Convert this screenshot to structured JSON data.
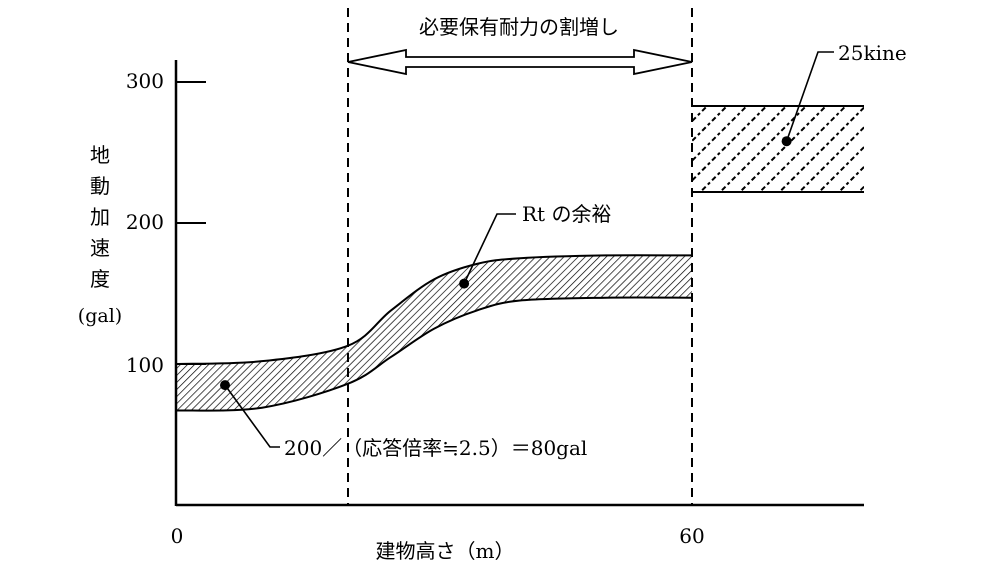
{
  "chart_data": {
    "type": "area",
    "title": "",
    "xlabel": "建物高さ（m）",
    "ylabel_chars": [
      "地",
      "動",
      "加",
      "速",
      "度",
      "(gal)"
    ],
    "xlim": [
      0,
      80
    ],
    "ylim": [
      0,
      330
    ],
    "x_ticks": [
      {
        "value": 0,
        "label": "0"
      },
      {
        "value": 60,
        "label": "60"
      }
    ],
    "y_ticks": [
      {
        "value": 100,
        "label": "100"
      },
      {
        "value": 200,
        "label": "200"
      },
      {
        "value": 300,
        "label": "300"
      }
    ],
    "grid": false,
    "dashed_verticals": [
      20,
      60
    ],
    "range_arrow": {
      "from": 20,
      "to": 60,
      "label": "必要保有耐力の割増し"
    },
    "rt_band": {
      "upper": [
        [
          0,
          100
        ],
        [
          10,
          102
        ],
        [
          20,
          113
        ],
        [
          25,
          138
        ],
        [
          30,
          160
        ],
        [
          35,
          171
        ],
        [
          40,
          175
        ],
        [
          50,
          177
        ],
        [
          60,
          177
        ]
      ],
      "lower": [
        [
          0,
          67
        ],
        [
          10,
          69
        ],
        [
          20,
          86
        ],
        [
          25,
          105
        ],
        [
          30,
          125
        ],
        [
          35,
          138
        ],
        [
          40,
          145
        ],
        [
          50,
          147
        ],
        [
          60,
          147
        ]
      ],
      "fill": "diagonal-hatch-fine"
    },
    "kine_box": {
      "x": [
        60,
        80
      ],
      "y": [
        222,
        283
      ],
      "fill": "diagonal-hatch-dotted"
    },
    "annotations": [
      {
        "id": "kine",
        "label": "25kine",
        "point": [
          71,
          258
        ]
      },
      {
        "id": "rt",
        "label": "Rt の余裕",
        "point": [
          33.5,
          157
        ]
      },
      {
        "id": "base",
        "label": "200／（応答倍率≒2.5）＝80gal",
        "point": [
          5.7,
          85
        ]
      }
    ]
  }
}
